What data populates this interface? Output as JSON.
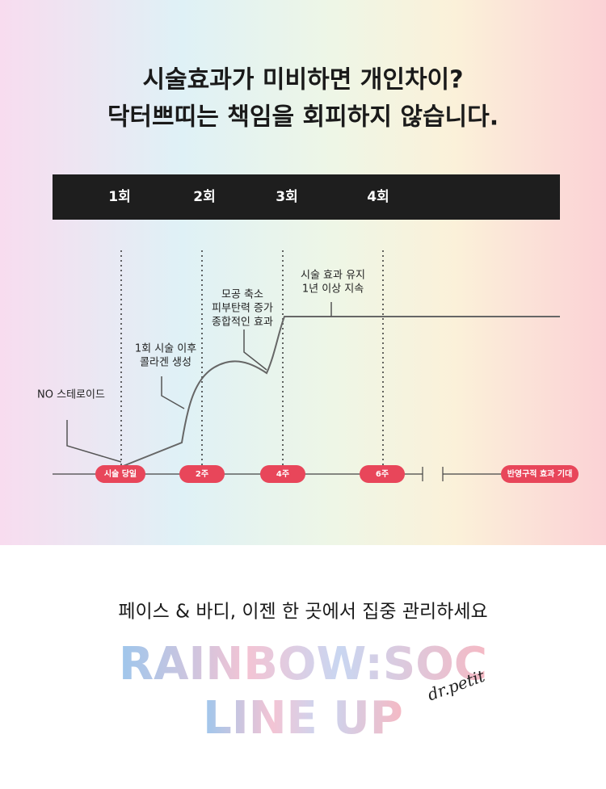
{
  "headline": [
    "시술효과가 미비하면 개인차이?",
    "닥터쁘띠는 책임을 회피하지 않습니다."
  ],
  "rounds": [
    "1회",
    "2회",
    "3회",
    "4회"
  ],
  "callouts": [
    [
      "NO 스테로이드"
    ],
    [
      "1회 시술 이후",
      "콜라겐 생성"
    ],
    [
      "모공 축소",
      "피부탄력 증가",
      "종합적인 효과"
    ],
    [
      "시술 효과 유지",
      "1년 이상 지속"
    ]
  ],
  "timeline": [
    "시술 당일",
    "2주",
    "4주",
    "6주",
    "반영구적 효과 기대"
  ],
  "footer": {
    "tagline": "페이스 & 바디, 이젠 한 곳에서 집중 관리하세요",
    "logo": [
      "RAINBOW:SOC",
      "LINE UP"
    ],
    "brand": "dr.petit"
  }
}
